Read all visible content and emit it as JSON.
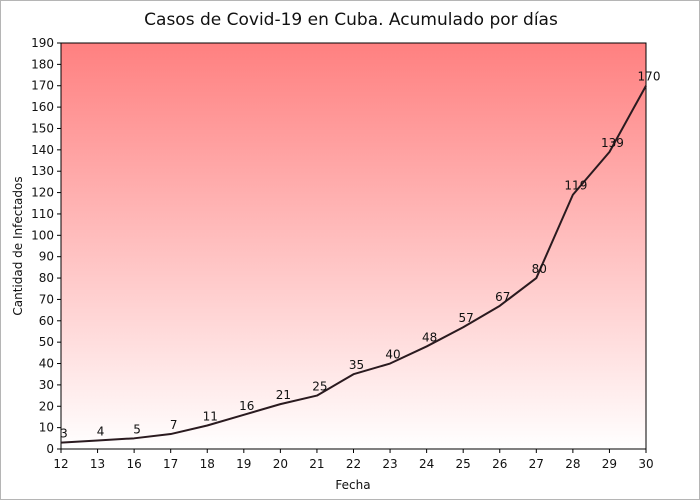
{
  "chart_data": {
    "type": "line",
    "title": "Casos de Covid-19 en Cuba. Acumulado por días",
    "xlabel": "Fecha",
    "ylabel": "Cantidad de Infectados",
    "categories": [
      "12",
      "13",
      "16",
      "17",
      "18",
      "19",
      "20",
      "21",
      "22",
      "23",
      "24",
      "25",
      "26",
      "27",
      "28",
      "29",
      "30"
    ],
    "series": [
      {
        "values": [
          3,
          4,
          5,
          7,
          11,
          16,
          21,
          25,
          35,
          40,
          48,
          57,
          67,
          80,
          119,
          139,
          170
        ]
      }
    ],
    "ylim": [
      0,
      190
    ],
    "yticks": [
      0,
      10,
      20,
      30,
      40,
      50,
      60,
      70,
      80,
      90,
      100,
      110,
      120,
      130,
      140,
      150,
      160,
      170,
      180,
      190
    ],
    "grid": false,
    "data_labels": true,
    "background_gradient": [
      "#ff8080",
      "#ffffff"
    ],
    "line_color": "#2a1a1f"
  }
}
